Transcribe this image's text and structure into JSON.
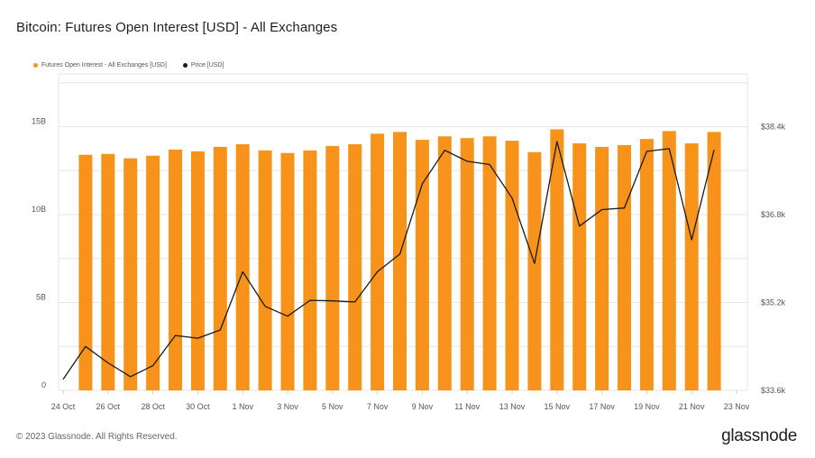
{
  "title": "Bitcoin: Futures Open Interest [USD] - All Exchanges",
  "footer": "© 2023 Glassnode. All Rights Reserved.",
  "logo": "glassnode",
  "colors": {
    "bar": "#f7931a",
    "line": "#1a1a1a",
    "grid": "#e6e6e6",
    "axis_text": "#555555"
  },
  "legend": [
    {
      "label": "Futures Open Interest - All Exchanges [USD]",
      "color": "#f7931a"
    },
    {
      "label": "Price [USD]",
      "color": "#1a1a1a"
    }
  ],
  "chart_data": {
    "type": "bar",
    "title": "Bitcoin: Futures Open Interest [USD] - All Exchanges",
    "categories": [
      "24 Oct",
      "25 Oct",
      "26 Oct",
      "27 Oct",
      "28 Oct",
      "29 Oct",
      "30 Oct",
      "31 Oct",
      "1 Nov",
      "2 Nov",
      "3 Nov",
      "4 Nov",
      "5 Nov",
      "6 Nov",
      "7 Nov",
      "8 Nov",
      "9 Nov",
      "10 Nov",
      "11 Nov",
      "12 Nov",
      "13 Nov",
      "14 Nov",
      "15 Nov",
      "16 Nov",
      "17 Nov",
      "18 Nov",
      "19 Nov",
      "20 Nov",
      "21 Nov",
      "22 Nov"
    ],
    "x_tick_labels": [
      "24 Oct",
      "26 Oct",
      "28 Oct",
      "30 Oct",
      "1 Nov",
      "3 Nov",
      "5 Nov",
      "7 Nov",
      "9 Nov",
      "11 Nov",
      "13 Nov",
      "15 Nov",
      "17 Nov",
      "19 Nov",
      "21 Nov",
      "23 Nov"
    ],
    "series": [
      {
        "name": "Futures Open Interest - All Exchanges [USD]",
        "axis": "left",
        "type": "bar",
        "values": [
          null,
          13.4,
          13.45,
          13.2,
          13.35,
          13.7,
          13.6,
          13.85,
          14.0,
          13.65,
          13.5,
          13.65,
          13.9,
          14.0,
          14.6,
          14.7,
          14.25,
          14.45,
          14.35,
          14.45,
          14.2,
          13.55,
          14.85,
          14.05,
          13.85,
          13.95,
          14.3,
          14.75,
          14.05,
          14.7
        ]
      },
      {
        "name": "Price [USD]",
        "axis": "right",
        "type": "line",
        "values": [
          33800,
          34400,
          34100,
          33850,
          34050,
          34600,
          34550,
          34700,
          35760,
          35130,
          34950,
          35240,
          35230,
          35210,
          35760,
          36080,
          37360,
          37970,
          37770,
          37710,
          37100,
          35910,
          38130,
          36590,
          36890,
          36920,
          37950,
          38000,
          36340,
          37980
        ]
      }
    ],
    "y_left": {
      "ticks": [
        "0",
        "5B",
        "10B",
        "15B"
      ],
      "tick_values": [
        0,
        5,
        10,
        15
      ],
      "ylim": [
        0,
        18
      ]
    },
    "y_right": {
      "ticks": [
        "$33.6k",
        "$35.2k",
        "$36.8k",
        "$38.4k"
      ],
      "tick_values": [
        33600,
        35200,
        36800,
        38400
      ],
      "ylim": [
        33600,
        39360
      ]
    },
    "grid": true,
    "legend_position": "top-left"
  }
}
